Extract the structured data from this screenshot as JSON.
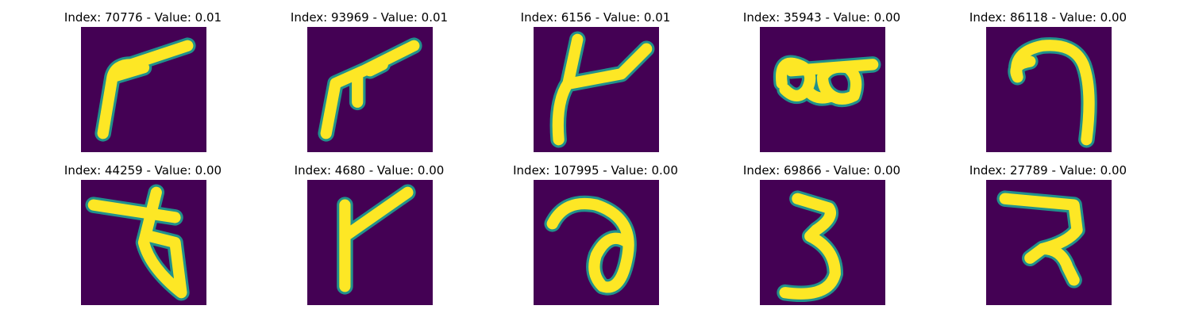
{
  "colors": {
    "background": "#440154",
    "stroke_edge": "#21918c",
    "stroke_core": "#fde725"
  },
  "panels": [
    {
      "title": "Index: 70776 - Value: 0.01",
      "glyph": "digit-70776-image"
    },
    {
      "title": "Index: 93969 - Value: 0.01",
      "glyph": "digit-93969-image"
    },
    {
      "title": "Index: 6156 - Value: 0.01",
      "glyph": "digit-6156-image"
    },
    {
      "title": "Index: 35943 - Value: 0.00",
      "glyph": "digit-35943-image"
    },
    {
      "title": "Index: 86118 - Value: 0.00",
      "glyph": "digit-86118-image"
    },
    {
      "title": "Index: 44259 - Value: 0.00",
      "glyph": "digit-44259-image"
    },
    {
      "title": "Index: 4680 - Value: 0.00",
      "glyph": "digit-4680-image"
    },
    {
      "title": "Index: 107995 - Value: 0.00",
      "glyph": "digit-107995-image"
    },
    {
      "title": "Index: 69866 - Value: 0.00",
      "glyph": "digit-69866-image"
    },
    {
      "title": "Index: 27789 - Value: 0.00",
      "glyph": "digit-27789-image"
    }
  ]
}
